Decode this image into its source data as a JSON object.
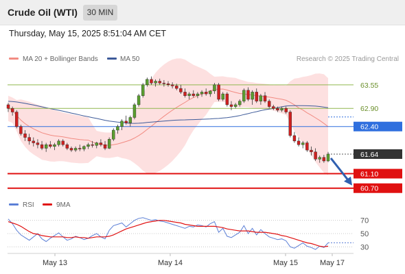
{
  "header": {
    "title": "Crude Oil (WTI)",
    "interval": "30 MIN"
  },
  "timestamp": "Thursday, May 15, 2025 8:51:04 AM CET",
  "legend": {
    "items": [
      {
        "label": "MA 20 + Bollinger Bands",
        "color": "#f28b82"
      },
      {
        "label": "MA 50",
        "color": "#3d5a99"
      }
    ],
    "source": "Research © 2025 Trading Central"
  },
  "rsi_legend": {
    "items": [
      {
        "label": "RSI",
        "color": "#5b7fd6"
      },
      {
        "label": "9MA",
        "color": "#e01010"
      }
    ]
  },
  "chart_data": [
    {
      "type": "candlestick",
      "x_axis": {
        "ticks": [
          "May 13",
          "May 14",
          "May 15",
          "May 17"
        ]
      },
      "ylim": [
        60.6,
        64.0
      ],
      "current_price": 61.64,
      "levels": [
        {
          "value": 63.55,
          "label": "63.55",
          "kind": "resistance-line",
          "color": "#8fb64e"
        },
        {
          "value": 62.9,
          "label": "62.90",
          "kind": "resistance-line",
          "color": "#8fb64e"
        },
        {
          "value": 62.4,
          "label": "62.40",
          "kind": "pivot",
          "color": "#2f6fde"
        },
        {
          "value": 61.64,
          "label": "61.64",
          "kind": "last-price",
          "color": "#333333"
        },
        {
          "value": 61.1,
          "label": "61.10",
          "kind": "support",
          "color": "#e01010"
        },
        {
          "value": 60.7,
          "label": "60.70",
          "kind": "support",
          "color": "#e01010"
        }
      ],
      "projection": {
        "from": 61.64,
        "to": 60.85,
        "color": "#3060b0"
      },
      "candles": [
        [
          63.0,
          63.05,
          62.8,
          62.9
        ],
        [
          62.9,
          62.95,
          62.7,
          62.8
        ],
        [
          62.8,
          62.85,
          62.35,
          62.4
        ],
        [
          62.4,
          62.45,
          62.15,
          62.2
        ],
        [
          62.2,
          62.3,
          62.0,
          62.1
        ],
        [
          62.1,
          62.2,
          61.9,
          62.0
        ],
        [
          62.0,
          62.1,
          61.85,
          61.95
        ],
        [
          61.95,
          62.05,
          61.8,
          61.9
        ],
        [
          61.9,
          62.0,
          61.75,
          61.8
        ],
        [
          61.8,
          61.95,
          61.7,
          61.9
        ],
        [
          61.9,
          62.0,
          61.8,
          61.85
        ],
        [
          61.85,
          61.95,
          61.75,
          61.9
        ],
        [
          61.9,
          62.05,
          61.85,
          62.0
        ],
        [
          62.0,
          62.05,
          61.85,
          61.9
        ],
        [
          61.9,
          61.95,
          61.75,
          61.8
        ],
        [
          61.8,
          61.85,
          61.7,
          61.75
        ],
        [
          61.75,
          61.85,
          61.7,
          61.8
        ],
        [
          61.8,
          61.9,
          61.72,
          61.78
        ],
        [
          61.78,
          61.88,
          61.72,
          61.85
        ],
        [
          61.85,
          61.95,
          61.78,
          61.9
        ],
        [
          61.9,
          62.0,
          61.82,
          61.88
        ],
        [
          61.88,
          61.98,
          61.8,
          61.95
        ],
        [
          61.95,
          62.05,
          61.85,
          61.9
        ],
        [
          61.9,
          62.0,
          61.75,
          61.8
        ],
        [
          61.8,
          62.1,
          61.78,
          62.05
        ],
        [
          62.05,
          62.35,
          62.0,
          62.3
        ],
        [
          62.3,
          62.45,
          62.2,
          62.4
        ],
        [
          62.4,
          62.6,
          62.3,
          62.55
        ],
        [
          62.55,
          62.7,
          62.45,
          62.5
        ],
        [
          62.5,
          62.7,
          62.4,
          62.65
        ],
        [
          62.65,
          63.05,
          62.6,
          63.0
        ],
        [
          63.0,
          63.3,
          62.95,
          63.25
        ],
        [
          63.25,
          63.6,
          63.2,
          63.55
        ],
        [
          63.55,
          63.75,
          63.5,
          63.7
        ],
        [
          63.7,
          63.78,
          63.55,
          63.6
        ],
        [
          63.6,
          63.7,
          63.5,
          63.65
        ],
        [
          63.65,
          63.72,
          63.55,
          63.6
        ],
        [
          63.6,
          63.68,
          63.5,
          63.58
        ],
        [
          63.58,
          63.65,
          63.5,
          63.55
        ],
        [
          63.55,
          63.62,
          63.45,
          63.52
        ],
        [
          63.52,
          63.58,
          63.4,
          63.45
        ],
        [
          63.45,
          63.55,
          63.3,
          63.35
        ],
        [
          63.35,
          63.45,
          63.2,
          63.25
        ],
        [
          63.25,
          63.35,
          63.15,
          63.3
        ],
        [
          63.3,
          63.4,
          63.2,
          63.25
        ],
        [
          63.25,
          63.35,
          63.18,
          63.3
        ],
        [
          63.3,
          63.4,
          63.22,
          63.35
        ],
        [
          63.35,
          63.45,
          63.25,
          63.3
        ],
        [
          63.3,
          63.4,
          63.22,
          63.38
        ],
        [
          63.38,
          63.6,
          63.3,
          63.55
        ],
        [
          63.55,
          63.6,
          63.1,
          63.15
        ],
        [
          63.15,
          63.35,
          63.1,
          63.3
        ],
        [
          63.3,
          63.35,
          62.95,
          63.0
        ],
        [
          63.0,
          63.1,
          62.85,
          62.95
        ],
        [
          62.95,
          63.05,
          62.9,
          63.0
        ],
        [
          63.0,
          63.15,
          62.95,
          63.1
        ],
        [
          63.1,
          63.45,
          63.05,
          63.4
        ],
        [
          63.4,
          63.48,
          63.1,
          63.15
        ],
        [
          63.15,
          63.4,
          63.0,
          63.35
        ],
        [
          63.35,
          63.45,
          63.05,
          63.1
        ],
        [
          63.1,
          63.3,
          63.0,
          63.25
        ],
        [
          63.25,
          63.35,
          63.05,
          63.1
        ],
        [
          63.1,
          63.15,
          62.9,
          62.95
        ],
        [
          62.95,
          63.0,
          62.85,
          62.9
        ],
        [
          62.9,
          62.95,
          62.8,
          62.85
        ],
        [
          62.85,
          62.95,
          62.8,
          62.9
        ],
        [
          62.9,
          62.95,
          62.75,
          62.8
        ],
        [
          62.8,
          62.85,
          62.1,
          62.15
        ],
        [
          62.15,
          62.25,
          61.95,
          62.0
        ],
        [
          62.0,
          62.1,
          61.85,
          61.9
        ],
        [
          61.9,
          62.0,
          61.8,
          61.95
        ],
        [
          61.95,
          62.0,
          61.7,
          61.75
        ],
        [
          61.75,
          61.85,
          61.6,
          61.7
        ],
        [
          61.7,
          61.8,
          61.45,
          61.5
        ],
        [
          61.5,
          61.6,
          61.4,
          61.55
        ],
        [
          61.55,
          61.62,
          61.4,
          61.45
        ],
        [
          61.45,
          61.7,
          61.42,
          61.64
        ]
      ]
    },
    {
      "type": "line",
      "name": "RSI",
      "ylim": [
        20,
        80
      ],
      "y_ticks": [
        70,
        50,
        30
      ],
      "series": [
        {
          "name": "RSI",
          "color": "#5b7fd6",
          "values": [
            72,
            65,
            55,
            48,
            44,
            40,
            45,
            50,
            42,
            38,
            43,
            47,
            51,
            45,
            40,
            42,
            46,
            44,
            41,
            43,
            47,
            50,
            45,
            42,
            55,
            62,
            64,
            66,
            60,
            65,
            70,
            73,
            74,
            72,
            70,
            71,
            69,
            68,
            66,
            64,
            62,
            60,
            58,
            61,
            60,
            63,
            62,
            60,
            65,
            68,
            52,
            58,
            46,
            44,
            48,
            52,
            62,
            50,
            58,
            48,
            56,
            50,
            45,
            43,
            41,
            42,
            39,
            30,
            28,
            32,
            36,
            31,
            29,
            26,
            31,
            29,
            36
          ]
        },
        {
          "name": "9MA",
          "color": "#e01010",
          "values": [
            68,
            66,
            64,
            61,
            57,
            53,
            50,
            49,
            47,
            46,
            45,
            45,
            45,
            45,
            44,
            44,
            45,
            44,
            44,
            43,
            44,
            45,
            45,
            45,
            46,
            48,
            51,
            54,
            57,
            59,
            61,
            63,
            65,
            67,
            68,
            69,
            70,
            70,
            69,
            68,
            67,
            66,
            64,
            63,
            62,
            61,
            61,
            61,
            61,
            61,
            60,
            59,
            57,
            56,
            55,
            54,
            54,
            54,
            53,
            52,
            52,
            52,
            51,
            50,
            49,
            47,
            46,
            44,
            42,
            40,
            38,
            36,
            35,
            33,
            31,
            30,
            31
          ]
        }
      ]
    }
  ]
}
